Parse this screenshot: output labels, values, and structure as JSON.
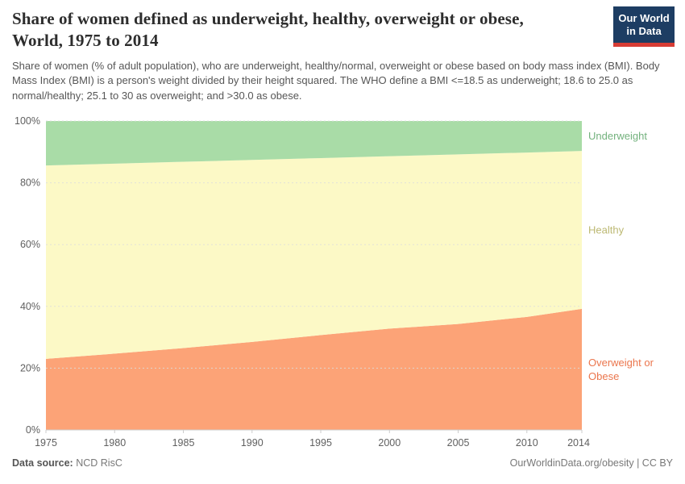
{
  "header": {
    "title_line1": "Share of women defined as underweight, healthy, overweight or obese,",
    "title_line2": "World, 1975 to 2014",
    "subtitle": "Share of women (% of adult population), who are underweight, healthy/normal, overweight or obese based on body mass index (BMI). Body Mass Index (BMI) is a person's weight divided by their height squared. The WHO define a BMI <=18.5 as underweight; 18.6 to 25.0 as normal/healthy; 25.1 to 30 as overweight; and >30.0 as obese.",
    "logo": {
      "line1": "Our World",
      "line2": "in Data",
      "bg_color": "#1D3D63",
      "stripe_color": "#D73C34"
    }
  },
  "footer": {
    "source_label": "Data source:",
    "source_value": "NCD RisC",
    "credit": "OurWorldinData.org/obesity | CC BY"
  },
  "chart_data": {
    "type": "area",
    "stacked": true,
    "title": "Share of women defined as underweight, healthy, overweight or obese, World, 1975 to 2014",
    "x": [
      1975,
      1980,
      1985,
      1990,
      1995,
      2000,
      2005,
      2010,
      2014
    ],
    "series": [
      {
        "name": "Overweight or Obese",
        "label_lines": [
          "Overweight or",
          "Obese"
        ],
        "values": [
          23.0,
          24.7,
          26.5,
          28.5,
          30.7,
          32.8,
          34.3,
          36.6,
          39.2
        ],
        "fill_color": "#FCA377",
        "label_color": "#EB764D"
      },
      {
        "name": "Healthy",
        "label_lines": [
          "Healthy"
        ],
        "values": [
          62.6,
          61.5,
          60.3,
          58.9,
          57.3,
          55.8,
          54.9,
          53.2,
          51.1
        ],
        "fill_color": "#FCF9C6",
        "label_color": "#BCB872"
      },
      {
        "name": "Underweight",
        "label_lines": [
          "Underweight"
        ],
        "values": [
          14.4,
          13.8,
          13.2,
          12.6,
          12.0,
          11.4,
          10.8,
          10.2,
          9.7
        ],
        "fill_color": "#A9DCA7",
        "label_color": "#74B27E"
      }
    ],
    "ylim": [
      0,
      100
    ],
    "unit": "%",
    "yticks": [
      "0%",
      "20%",
      "40%",
      "60%",
      "80%",
      "100%"
    ],
    "ytick_values": [
      0,
      20,
      40,
      60,
      80,
      100
    ],
    "xtick_labels": [
      "1975",
      "1980",
      "1985",
      "1990",
      "1995",
      "2000",
      "2005",
      "2010",
      "2014"
    ],
    "grid": true,
    "legend_position": "right",
    "axis_text_color": "#606060",
    "grid_color": "#dddddd",
    "axis_line_color": "#cccccc"
  }
}
